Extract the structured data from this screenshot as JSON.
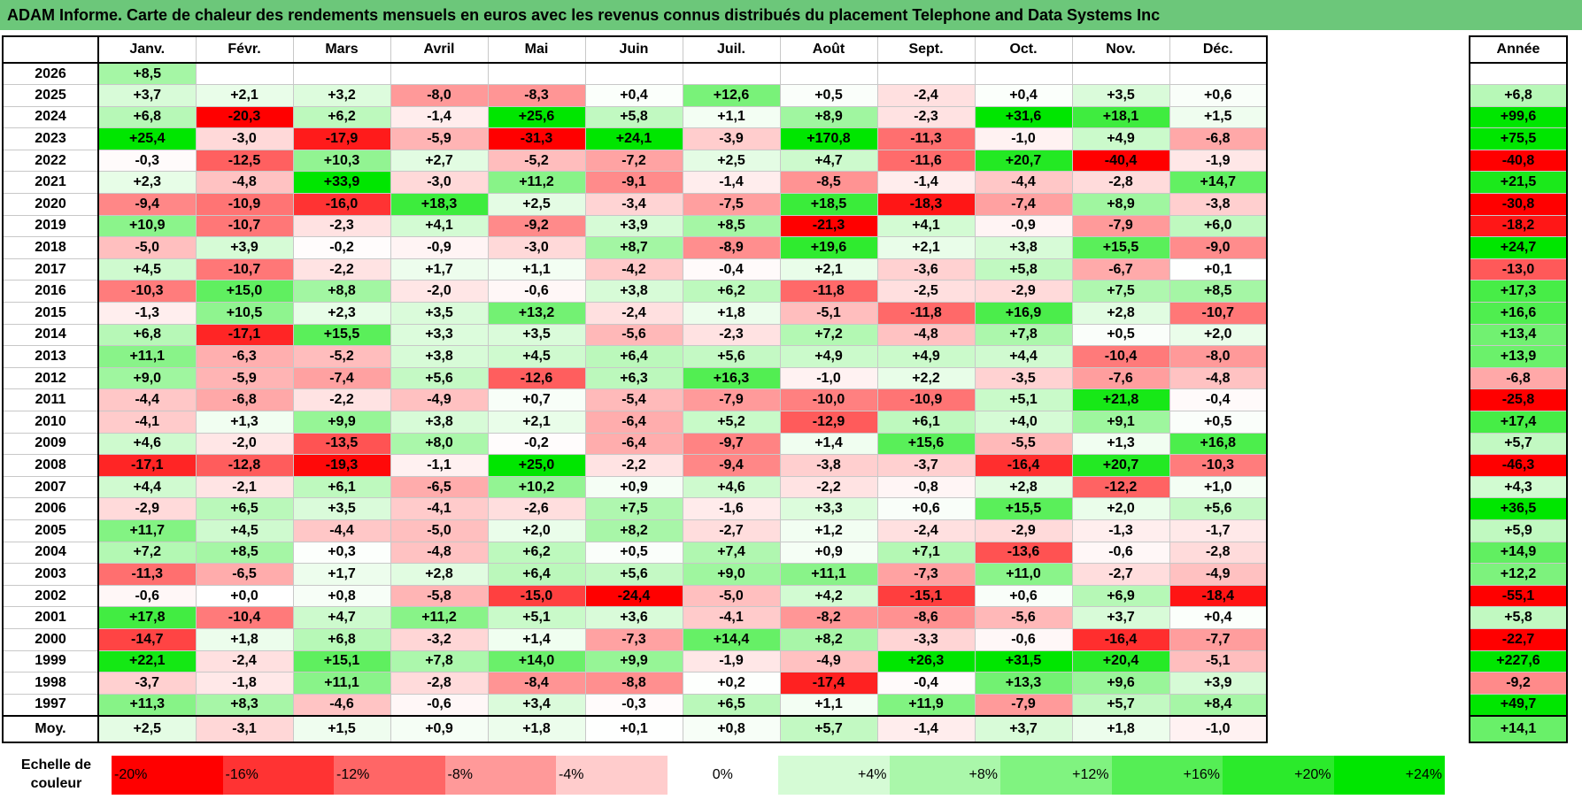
{
  "title": "ADAM Informe. Carte de chaleur des rendements mensuels en euros avec les revenus connus distribués du placement Telephone and Data Systems Inc",
  "chart_data": {
    "type": "heatmap",
    "title": "ADAM Informe. Carte de chaleur des rendements mensuels en euros avec les revenus connus distribués du placement Telephone and Data Systems Inc",
    "columns": [
      "Janv.",
      "Févr.",
      "Mars",
      "Avril",
      "Mai",
      "Juin",
      "Juil.",
      "Août",
      "Sept.",
      "Oct.",
      "Nov.",
      "Déc."
    ],
    "year_column_label": "Année",
    "rows": [
      {
        "year": "2026",
        "values": [
          "+8,5",
          "",
          "",
          "",
          "",
          "",
          "",
          "",
          "",
          "",
          "",
          ""
        ],
        "annual": ""
      },
      {
        "year": "2025",
        "values": [
          "+3,7",
          "+2,1",
          "+3,2",
          "-8,0",
          "-8,3",
          "+0,4",
          "+12,6",
          "+0,5",
          "-2,4",
          "+0,4",
          "+3,5",
          "+0,6"
        ],
        "annual": "+6,8"
      },
      {
        "year": "2024",
        "values": [
          "+6,8",
          "-20,3",
          "+6,2",
          "-1,4",
          "+25,6",
          "+5,8",
          "+1,1",
          "+8,9",
          "-2,3",
          "+31,6",
          "+18,1",
          "+1,5"
        ],
        "annual": "+99,6"
      },
      {
        "year": "2023",
        "values": [
          "+25,4",
          "-3,0",
          "-17,9",
          "-5,9",
          "-31,3",
          "+24,1",
          "-3,9",
          "+170,8",
          "-11,3",
          "-1,0",
          "+4,9",
          "-6,8"
        ],
        "annual": "+75,5"
      },
      {
        "year": "2022",
        "values": [
          "-0,3",
          "-12,5",
          "+10,3",
          "+2,7",
          "-5,2",
          "-7,2",
          "+2,5",
          "+4,7",
          "-11,6",
          "+20,7",
          "-40,4",
          "-1,9"
        ],
        "annual": "-40,8"
      },
      {
        "year": "2021",
        "values": [
          "+2,3",
          "-4,8",
          "+33,9",
          "-3,0",
          "+11,2",
          "-9,1",
          "-1,4",
          "-8,5",
          "-1,4",
          "-4,4",
          "-2,8",
          "+14,7"
        ],
        "annual": "+21,5"
      },
      {
        "year": "2020",
        "values": [
          "-9,4",
          "-10,9",
          "-16,0",
          "+18,3",
          "+2,5",
          "-3,4",
          "-7,5",
          "+18,5",
          "-18,3",
          "-7,4",
          "+8,9",
          "-3,8"
        ],
        "annual": "-30,8"
      },
      {
        "year": "2019",
        "values": [
          "+10,9",
          "-10,7",
          "-2,3",
          "+4,1",
          "-9,2",
          "+3,9",
          "+8,5",
          "-21,3",
          "+4,1",
          "-0,9",
          "-7,9",
          "+6,0"
        ],
        "annual": "-18,2"
      },
      {
        "year": "2018",
        "values": [
          "-5,0",
          "+3,9",
          "-0,2",
          "-0,9",
          "-3,0",
          "+8,7",
          "-8,9",
          "+19,6",
          "+2,1",
          "+3,8",
          "+15,5",
          "-9,0"
        ],
        "annual": "+24,7"
      },
      {
        "year": "2017",
        "values": [
          "+4,5",
          "-10,7",
          "-2,2",
          "+1,7",
          "+1,1",
          "-4,2",
          "-0,4",
          "+2,1",
          "-3,6",
          "+5,8",
          "-6,7",
          "+0,1"
        ],
        "annual": "-13,0"
      },
      {
        "year": "2016",
        "values": [
          "-10,3",
          "+15,0",
          "+8,8",
          "-2,0",
          "-0,6",
          "+3,8",
          "+6,2",
          "-11,8",
          "-2,5",
          "-2,9",
          "+7,5",
          "+8,5"
        ],
        "annual": "+17,3"
      },
      {
        "year": "2015",
        "values": [
          "-1,3",
          "+10,5",
          "+2,3",
          "+3,5",
          "+13,2",
          "-2,4",
          "+1,8",
          "-5,1",
          "-11,8",
          "+16,9",
          "+2,8",
          "-10,7"
        ],
        "annual": "+16,6"
      },
      {
        "year": "2014",
        "values": [
          "+6,8",
          "-17,1",
          "+15,5",
          "+3,3",
          "+3,5",
          "-5,6",
          "-2,3",
          "+7,2",
          "-4,8",
          "+7,8",
          "+0,5",
          "+2,0"
        ],
        "annual": "+13,4"
      },
      {
        "year": "2013",
        "values": [
          "+11,1",
          "-6,3",
          "-5,2",
          "+3,8",
          "+4,5",
          "+6,4",
          "+5,6",
          "+4,9",
          "+4,9",
          "+4,4",
          "-10,4",
          "-8,0"
        ],
        "annual": "+13,9"
      },
      {
        "year": "2012",
        "values": [
          "+9,0",
          "-5,9",
          "-7,4",
          "+5,6",
          "-12,6",
          "+6,3",
          "+16,3",
          "-1,0",
          "+2,2",
          "-3,5",
          "-7,6",
          "-4,8"
        ],
        "annual": "-6,8"
      },
      {
        "year": "2011",
        "values": [
          "-4,4",
          "-6,8",
          "-2,2",
          "-4,9",
          "+0,7",
          "-5,4",
          "-7,9",
          "-10,0",
          "-10,9",
          "+5,1",
          "+21,8",
          "-0,4"
        ],
        "annual": "-25,8"
      },
      {
        "year": "2010",
        "values": [
          "-4,1",
          "+1,3",
          "+9,9",
          "+3,8",
          "+2,1",
          "-6,4",
          "+5,2",
          "-12,9",
          "+6,1",
          "+4,0",
          "+9,1",
          "+0,5"
        ],
        "annual": "+17,4"
      },
      {
        "year": "2009",
        "values": [
          "+4,6",
          "-2,0",
          "-13,5",
          "+8,0",
          "-0,2",
          "-6,4",
          "-9,7",
          "+1,4",
          "+15,6",
          "-5,5",
          "+1,3",
          "+16,8"
        ],
        "annual": "+5,7"
      },
      {
        "year": "2008",
        "values": [
          "-17,1",
          "-12,8",
          "-19,3",
          "-1,1",
          "+25,0",
          "-2,2",
          "-9,4",
          "-3,8",
          "-3,7",
          "-16,4",
          "+20,7",
          "-10,3"
        ],
        "annual": "-46,3"
      },
      {
        "year": "2007",
        "values": [
          "+4,4",
          "-2,1",
          "+6,1",
          "-6,5",
          "+10,2",
          "+0,9",
          "+4,6",
          "-2,2",
          "-0,8",
          "+2,8",
          "-12,2",
          "+1,0"
        ],
        "annual": "+4,3"
      },
      {
        "year": "2006",
        "values": [
          "-2,9",
          "+6,5",
          "+3,5",
          "-4,1",
          "-2,6",
          "+7,5",
          "-1,6",
          "+3,3",
          "+0,6",
          "+15,5",
          "+2,0",
          "+5,6"
        ],
        "annual": "+36,5"
      },
      {
        "year": "2005",
        "values": [
          "+11,7",
          "+4,5",
          "-4,4",
          "-5,0",
          "+2,0",
          "+8,2",
          "-2,7",
          "+1,2",
          "-2,4",
          "-2,9",
          "-1,3",
          "-1,7"
        ],
        "annual": "+5,9"
      },
      {
        "year": "2004",
        "values": [
          "+7,2",
          "+8,5",
          "+0,3",
          "-4,8",
          "+6,2",
          "+0,5",
          "+7,4",
          "+0,9",
          "+7,1",
          "-13,6",
          "-0,6",
          "-2,8"
        ],
        "annual": "+14,9"
      },
      {
        "year": "2003",
        "values": [
          "-11,3",
          "-6,5",
          "+1,7",
          "+2,8",
          "+6,4",
          "+5,6",
          "+9,0",
          "+11,1",
          "-7,3",
          "+11,0",
          "-2,7",
          "-4,9"
        ],
        "annual": "+12,2"
      },
      {
        "year": "2002",
        "values": [
          "-0,6",
          "+0,0",
          "+0,8",
          "-5,8",
          "-15,0",
          "-24,4",
          "-5,0",
          "+4,2",
          "-15,1",
          "+0,6",
          "+6,9",
          "-18,4"
        ],
        "annual": "-55,1"
      },
      {
        "year": "2001",
        "values": [
          "+17,8",
          "-10,4",
          "+4,7",
          "+11,2",
          "+5,1",
          "+3,6",
          "-4,1",
          "-8,2",
          "-8,6",
          "-5,6",
          "+3,7",
          "+0,4"
        ],
        "annual": "+5,8"
      },
      {
        "year": "2000",
        "values": [
          "-14,7",
          "+1,8",
          "+6,8",
          "-3,2",
          "+1,4",
          "-7,3",
          "+14,4",
          "+8,2",
          "-3,3",
          "-0,6",
          "-16,4",
          "-7,7"
        ],
        "annual": "-22,7"
      },
      {
        "year": "1999",
        "values": [
          "+22,1",
          "-2,4",
          "+15,1",
          "+7,8",
          "+14,0",
          "+9,9",
          "-1,9",
          "-4,9",
          "+26,3",
          "+31,5",
          "+20,4",
          "-5,1"
        ],
        "annual": "+227,6"
      },
      {
        "year": "1998",
        "values": [
          "-3,7",
          "-1,8",
          "+11,1",
          "-2,8",
          "-8,4",
          "-8,8",
          "+0,2",
          "-17,4",
          "-0,4",
          "+13,3",
          "+9,6",
          "+3,9"
        ],
        "annual": "-9,2"
      },
      {
        "year": "1997",
        "values": [
          "+11,3",
          "+8,3",
          "-4,6",
          "-0,6",
          "+3,4",
          "-0,3",
          "+6,5",
          "+1,1",
          "+11,9",
          "-7,9",
          "+5,7",
          "+8,4"
        ],
        "annual": "+49,7"
      }
    ],
    "average": {
      "label": "Moy.",
      "values": [
        "+2,5",
        "-3,1",
        "+1,5",
        "+0,9",
        "+1,8",
        "+0,1",
        "+0,8",
        "+5,7",
        "-1,4",
        "+3,7",
        "+1,8",
        "-1,0"
      ],
      "annual": "+14,1"
    },
    "scale": {
      "label_line1": "Echelle de",
      "label_line2": "couleur",
      "stops": [
        {
          "label": "-20%",
          "value": -20
        },
        {
          "label": "-16%",
          "value": -16
        },
        {
          "label": "-12%",
          "value": -12
        },
        {
          "label": "-8%",
          "value": -8
        },
        {
          "label": "-4%",
          "value": -4
        },
        {
          "label": "0%",
          "value": 0
        },
        {
          "label": "+4%",
          "value": 4
        },
        {
          "label": "+8%",
          "value": 8
        },
        {
          "label": "+12%",
          "value": 12
        },
        {
          "label": "+16%",
          "value": 16
        },
        {
          "label": "+20%",
          "value": 20
        },
        {
          "label": "+24%",
          "value": 24
        }
      ]
    }
  },
  "colors": {
    "title_bar": "#6cc77a",
    "negative_max": "#ff0000",
    "positive_max": "#00e600",
    "neutral": "#ffffff"
  }
}
